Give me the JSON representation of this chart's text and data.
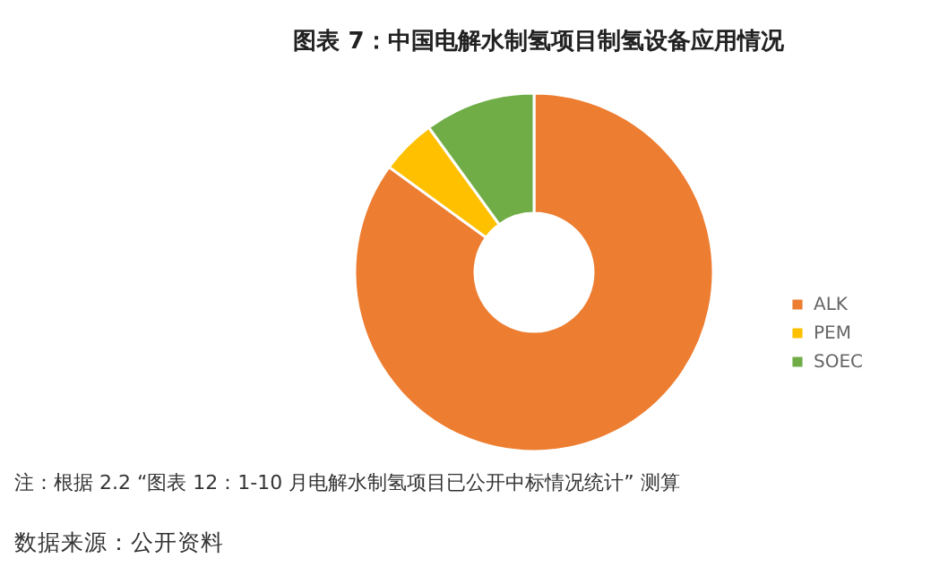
{
  "chart_data": {
    "type": "donut",
    "title": "图表 7：中国电解水制氢项目制氢设备应用情况",
    "categories": [
      "ALK",
      "PEM",
      "SOEC"
    ],
    "values": [
      85,
      5,
      10
    ],
    "colors": [
      "#ed7d31",
      "#ffc000",
      "#70ad47"
    ],
    "legend": "right",
    "annotations": [
      "注：根据 2.2 “图表 12：1-10 月电解水制氢项目已公开中标情况统计” 测算",
      "数据来源：公开资料"
    ]
  }
}
